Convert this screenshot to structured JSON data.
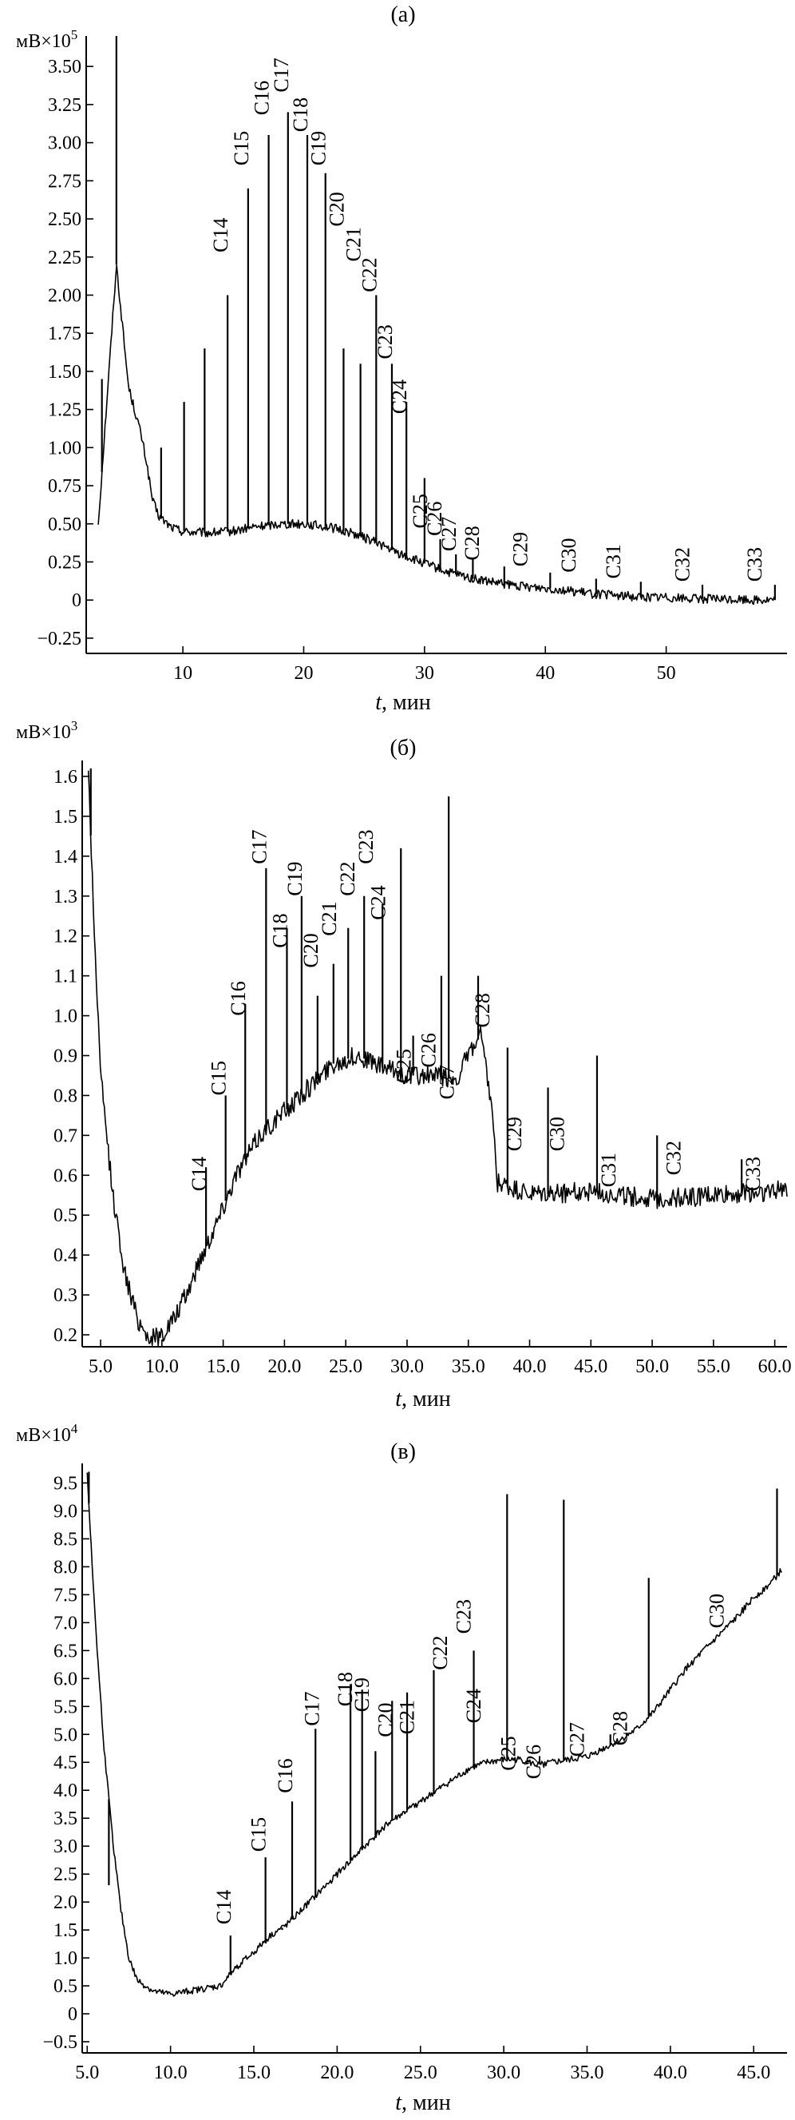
{
  "figure": {
    "title": "",
    "panels_count": 3
  },
  "colors": {
    "line": "#000000",
    "axis": "#000000",
    "background": "#ffffff"
  },
  "chart_data": [
    {
      "type": "line",
      "panel_label": "(a)",
      "unit_label": "мВ×10",
      "unit_exp": "5",
      "xlabel_var": "t",
      "xlabel_unit": ", мин",
      "xlim": [
        2,
        60
      ],
      "ylim": [
        -0.35,
        3.7
      ],
      "xticks": [
        10,
        20,
        30,
        40,
        50
      ],
      "xtick_labels": [
        "10",
        "20",
        "30",
        "40",
        "50"
      ],
      "yticks": [
        -0.25,
        0,
        0.25,
        0.5,
        0.75,
        1.0,
        1.25,
        1.5,
        1.75,
        2.0,
        2.25,
        2.5,
        2.75,
        3.0,
        3.25,
        3.5
      ],
      "ytick_labels": [
        "−0.25",
        "0",
        "0.25",
        "0.50",
        "0.75",
        "1.00",
        "1.25",
        "1.50",
        "1.75",
        "2.00",
        "2.25",
        "2.50",
        "2.75",
        "3.00",
        "3.25",
        "3.50"
      ],
      "baseline": [
        [
          3,
          0.5
        ],
        [
          4.5,
          2.2
        ],
        [
          5,
          1.8
        ],
        [
          5.5,
          1.4
        ],
        [
          6,
          1.25
        ],
        [
          6.5,
          1.1
        ],
        [
          7,
          0.9
        ],
        [
          7.5,
          0.65
        ],
        [
          8,
          0.55
        ],
        [
          9,
          0.48
        ],
        [
          10,
          0.45
        ],
        [
          12,
          0.44
        ],
        [
          14,
          0.45
        ],
        [
          16,
          0.48
        ],
        [
          18,
          0.5
        ],
        [
          20,
          0.5
        ],
        [
          22,
          0.48
        ],
        [
          24,
          0.44
        ],
        [
          26,
          0.38
        ],
        [
          28,
          0.3
        ],
        [
          30,
          0.24
        ],
        [
          32,
          0.18
        ],
        [
          34,
          0.14
        ],
        [
          36,
          0.11
        ],
        [
          38,
          0.09
        ],
        [
          40,
          0.08
        ],
        [
          42,
          0.06
        ],
        [
          44,
          0.04
        ],
        [
          46,
          0.03
        ],
        [
          48,
          0.02
        ],
        [
          50,
          0.02
        ],
        [
          52,
          0.01
        ],
        [
          55,
          0.005
        ],
        [
          59,
          0.0
        ]
      ],
      "noise_amp": 0.06,
      "peaks": [
        {
          "x": 3.3,
          "y": 1.45
        },
        {
          "x": 4.5,
          "y": 3.7
        },
        {
          "x": 8.2,
          "y": 1.0
        },
        {
          "x": 10.1,
          "y": 1.3
        },
        {
          "x": 11.8,
          "y": 1.65
        },
        {
          "x": 13.7,
          "y": 2.0
        },
        {
          "x": 15.4,
          "y": 2.7
        },
        {
          "x": 17.1,
          "y": 3.05
        },
        {
          "x": 18.7,
          "y": 3.2
        },
        {
          "x": 20.3,
          "y": 3.05
        },
        {
          "x": 21.8,
          "y": 2.8
        },
        {
          "x": 23.3,
          "y": 1.65
        },
        {
          "x": 24.7,
          "y": 1.55
        },
        {
          "x": 26.0,
          "y": 2.0
        },
        {
          "x": 27.3,
          "y": 1.55
        },
        {
          "x": 28.5,
          "y": 1.3
        },
        {
          "x": 30.0,
          "y": 0.8
        },
        {
          "x": 31.3,
          "y": 0.4
        },
        {
          "x": 32.6,
          "y": 0.3
        },
        {
          "x": 34.0,
          "y": 0.27
        },
        {
          "x": 36.6,
          "y": 0.22
        },
        {
          "x": 40.4,
          "y": 0.18
        },
        {
          "x": 44.2,
          "y": 0.14
        },
        {
          "x": 47.9,
          "y": 0.12
        },
        {
          "x": 53.0,
          "y": 0.1
        },
        {
          "x": 59.0,
          "y": 0.1
        }
      ],
      "labels": [
        {
          "text": "C14",
          "x": 13.7,
          "y": 2.28
        },
        {
          "text": "C15",
          "x": 15.4,
          "y": 2.85
        },
        {
          "text": "C16",
          "x": 17.1,
          "y": 3.18
        },
        {
          "text": "C17",
          "x": 18.7,
          "y": 3.33
        },
        {
          "text": "C18",
          "x": 20.3,
          "y": 3.07
        },
        {
          "text": "C19",
          "x": 21.8,
          "y": 2.85
        },
        {
          "text": "C20",
          "x": 23.3,
          "y": 2.45
        },
        {
          "text": "C21",
          "x": 24.7,
          "y": 2.22
        },
        {
          "text": "C22",
          "x": 26.0,
          "y": 2.02
        },
        {
          "text": "C23",
          "x": 27.3,
          "y": 1.58
        },
        {
          "text": "C24",
          "x": 28.5,
          "y": 1.22
        },
        {
          "text": "C25",
          "x": 30.2,
          "y": 0.47
        },
        {
          "text": "C26",
          "x": 31.4,
          "y": 0.42
        },
        {
          "text": "C27",
          "x": 32.6,
          "y": 0.32
        },
        {
          "text": "C28",
          "x": 34.5,
          "y": 0.26
        },
        {
          "text": "C29",
          "x": 38.5,
          "y": 0.22
        },
        {
          "text": "C30",
          "x": 42.5,
          "y": 0.18
        },
        {
          "text": "C31",
          "x": 46.2,
          "y": 0.14
        },
        {
          "text": "C32",
          "x": 51.9,
          "y": 0.12
        },
        {
          "text": "C33",
          "x": 57.9,
          "y": 0.12
        }
      ]
    },
    {
      "type": "line",
      "panel_label": "(б)",
      "unit_label": "мВ×10",
      "unit_exp": "3",
      "xlabel_var": "t",
      "xlabel_unit": ", мин",
      "xlim": [
        3.5,
        61
      ],
      "ylim": [
        0.17,
        1.64
      ],
      "xticks": [
        5,
        10,
        15,
        20,
        25,
        30,
        35,
        40,
        45,
        50,
        55,
        60
      ],
      "xtick_labels": [
        "5.0",
        "10.0",
        "15.0",
        "20.0",
        "25.0",
        "30.0",
        "35.0",
        "40.0",
        "45.0",
        "50.0",
        "55.0",
        "60.0"
      ],
      "yticks": [
        0.2,
        0.3,
        0.4,
        0.5,
        0.6,
        0.7,
        0.8,
        0.9,
        1.0,
        1.1,
        1.2,
        1.3,
        1.4,
        1.5,
        1.6
      ],
      "ytick_labels": [
        "0.2",
        "0.3",
        "0.4",
        "0.5",
        "0.6",
        "0.7",
        "0.8",
        "0.9",
        "1.0",
        "1.1",
        "1.2",
        "1.3",
        "1.4",
        "1.5",
        "1.6"
      ],
      "baseline": [
        [
          4,
          1.62
        ],
        [
          4.5,
          1.2
        ],
        [
          5,
          0.85
        ],
        [
          6,
          0.55
        ],
        [
          7,
          0.35
        ],
        [
          8,
          0.24
        ],
        [
          9,
          0.19
        ],
        [
          10,
          0.2
        ],
        [
          11,
          0.24
        ],
        [
          12,
          0.3
        ],
        [
          13,
          0.38
        ],
        [
          14,
          0.45
        ],
        [
          15,
          0.52
        ],
        [
          16,
          0.6
        ],
        [
          17,
          0.65
        ],
        [
          18,
          0.7
        ],
        [
          20,
          0.76
        ],
        [
          22,
          0.82
        ],
        [
          24,
          0.88
        ],
        [
          26,
          0.9
        ],
        [
          28,
          0.87
        ],
        [
          30,
          0.85
        ],
        [
          32,
          0.85
        ],
        [
          34,
          0.84
        ],
        [
          35,
          0.9
        ],
        [
          36,
          0.95
        ],
        [
          37,
          0.75
        ],
        [
          37.3,
          0.58
        ],
        [
          40,
          0.55
        ],
        [
          45,
          0.56
        ],
        [
          50,
          0.54
        ],
        [
          55,
          0.55
        ],
        [
          60,
          0.56
        ],
        [
          61,
          0.57
        ]
      ],
      "noise_amp": 0.05,
      "peaks": [
        {
          "x": 4.2,
          "y": 1.62
        },
        {
          "x": 13.6,
          "y": 0.62
        },
        {
          "x": 15.2,
          "y": 0.8
        },
        {
          "x": 16.8,
          "y": 1.03
        },
        {
          "x": 18.5,
          "y": 1.37
        },
        {
          "x": 20.2,
          "y": 1.22
        },
        {
          "x": 21.4,
          "y": 1.3
        },
        {
          "x": 22.7,
          "y": 1.05
        },
        {
          "x": 24.0,
          "y": 1.13
        },
        {
          "x": 25.2,
          "y": 1.22
        },
        {
          "x": 26.5,
          "y": 1.3
        },
        {
          "x": 28.0,
          "y": 1.28
        },
        {
          "x": 29.5,
          "y": 1.42
        },
        {
          "x": 30.5,
          "y": 0.95
        },
        {
          "x": 32.8,
          "y": 1.1
        },
        {
          "x": 33.4,
          "y": 1.55
        },
        {
          "x": 35.8,
          "y": 1.1
        },
        {
          "x": 38.2,
          "y": 0.92
        },
        {
          "x": 41.5,
          "y": 0.82
        },
        {
          "x": 45.5,
          "y": 0.9
        },
        {
          "x": 50.4,
          "y": 0.7
        },
        {
          "x": 57.3,
          "y": 0.64
        }
      ],
      "labels": [
        {
          "text": "C14",
          "x": 13.6,
          "y": 0.56
        },
        {
          "text": "C15",
          "x": 15.2,
          "y": 0.8
        },
        {
          "text": "C16",
          "x": 16.8,
          "y": 1.0
        },
        {
          "text": "C17",
          "x": 18.5,
          "y": 1.38
        },
        {
          "text": "C18",
          "x": 20.2,
          "y": 1.17
        },
        {
          "text": "C19",
          "x": 21.4,
          "y": 1.3
        },
        {
          "text": "C20",
          "x": 22.7,
          "y": 1.12
        },
        {
          "text": "C21",
          "x": 24.2,
          "y": 1.2
        },
        {
          "text": "C22",
          "x": 25.7,
          "y": 1.3
        },
        {
          "text": "C23",
          "x": 27.2,
          "y": 1.38
        },
        {
          "text": "C24",
          "x": 28.2,
          "y": 1.24
        },
        {
          "text": "C25",
          "x": 30.3,
          "y": 0.83
        },
        {
          "text": "C26",
          "x": 32.3,
          "y": 0.87
        },
        {
          "text": "C27",
          "x": 33.8,
          "y": 0.79
        },
        {
          "text": "C28",
          "x": 36.7,
          "y": 0.97
        },
        {
          "text": "C29",
          "x": 39.3,
          "y": 0.66
        },
        {
          "text": "C30",
          "x": 42.8,
          "y": 0.66
        },
        {
          "text": "C31",
          "x": 47.0,
          "y": 0.57
        },
        {
          "text": "C32",
          "x": 52.3,
          "y": 0.6
        },
        {
          "text": "C33",
          "x": 58.8,
          "y": 0.56
        }
      ]
    },
    {
      "type": "line",
      "panel_label": "(в)",
      "unit_label": "мВ×10",
      "unit_exp": "4",
      "xlabel_var": "t",
      "xlabel_unit": ", мин",
      "xlim": [
        4.7,
        47
      ],
      "ylim": [
        -0.7,
        9.85
      ],
      "xticks": [
        5,
        10,
        15,
        20,
        25,
        30,
        35,
        40,
        45
      ],
      "xtick_labels": [
        "5.0",
        "10.0",
        "15.0",
        "20.0",
        "25.0",
        "30.0",
        "35.0",
        "40.0",
        "45.0"
      ],
      "yticks": [
        -0.5,
        0,
        0.5,
        1.0,
        1.5,
        2.0,
        2.5,
        3.0,
        3.5,
        4.0,
        4.5,
        5.0,
        5.5,
        6.0,
        6.5,
        7.0,
        7.5,
        8.0,
        8.5,
        9.0,
        9.5
      ],
      "ytick_labels": [
        "−0.5",
        "0",
        "0.5",
        "1.0",
        "1.5",
        "2.0",
        "2.5",
        "3.0",
        "3.5",
        "4.0",
        "4.5",
        "5.0",
        "5.5",
        "6.0",
        "6.5",
        "7.0",
        "7.5",
        "8.0",
        "8.5",
        "9.0",
        "9.5"
      ],
      "baseline": [
        [
          5,
          9.7
        ],
        [
          5.3,
          8.0
        ],
        [
          5.6,
          6.5
        ],
        [
          6,
          4.8
        ],
        [
          6.5,
          3.2
        ],
        [
          7,
          1.9
        ],
        [
          7.5,
          1.0
        ],
        [
          8,
          0.6
        ],
        [
          9,
          0.4
        ],
        [
          10,
          0.35
        ],
        [
          11,
          0.4
        ],
        [
          12,
          0.45
        ],
        [
          13,
          0.5
        ],
        [
          14,
          0.85
        ],
        [
          15,
          1.1
        ],
        [
          16,
          1.4
        ],
        [
          17,
          1.6
        ],
        [
          18,
          1.9
        ],
        [
          19,
          2.2
        ],
        [
          20,
          2.5
        ],
        [
          21,
          2.8
        ],
        [
          22,
          3.1
        ],
        [
          23,
          3.4
        ],
        [
          24,
          3.6
        ],
        [
          25,
          3.8
        ],
        [
          26,
          4.0
        ],
        [
          27,
          4.2
        ],
        [
          28,
          4.4
        ],
        [
          29,
          4.5
        ],
        [
          30,
          4.55
        ],
        [
          31,
          4.55
        ],
        [
          32,
          4.45
        ],
        [
          33,
          4.5
        ],
        [
          34,
          4.55
        ],
        [
          35,
          4.6
        ],
        [
          36,
          4.75
        ],
        [
          37,
          4.9
        ],
        [
          38,
          5.1
        ],
        [
          39,
          5.4
        ],
        [
          40,
          5.8
        ],
        [
          41,
          6.2
        ],
        [
          42,
          6.5
        ],
        [
          43,
          6.8
        ],
        [
          44,
          7.1
        ],
        [
          45,
          7.45
        ],
        [
          46,
          7.7
        ],
        [
          46.7,
          7.95
        ]
      ],
      "noise_amp": 0.12,
      "peaks": [
        {
          "x": 5.1,
          "y": 9.7
        },
        {
          "x": 6.3,
          "y": 2.3
        },
        {
          "x": 13.6,
          "y": 1.4
        },
        {
          "x": 15.7,
          "y": 2.8
        },
        {
          "x": 16.7,
          "y": 1.5
        },
        {
          "x": 17.3,
          "y": 3.8
        },
        {
          "x": 18.7,
          "y": 5.1
        },
        {
          "x": 20.8,
          "y": 5.9
        },
        {
          "x": 21.5,
          "y": 5.8
        },
        {
          "x": 22.3,
          "y": 4.7
        },
        {
          "x": 23.3,
          "y": 5.6
        },
        {
          "x": 24.2,
          "y": 5.75
        },
        {
          "x": 25.8,
          "y": 6.15
        },
        {
          "x": 28.2,
          "y": 6.5
        },
        {
          "x": 30.2,
          "y": 9.3
        },
        {
          "x": 33.6,
          "y": 9.2
        },
        {
          "x": 36.4,
          "y": 5.0
        },
        {
          "x": 38.7,
          "y": 7.8
        },
        {
          "x": 46.4,
          "y": 9.4
        }
      ],
      "labels": [
        {
          "text": "C14",
          "x": 13.6,
          "y": 1.6
        },
        {
          "text": "C15",
          "x": 15.7,
          "y": 2.9
        },
        {
          "text": "C16",
          "x": 17.3,
          "y": 3.95
        },
        {
          "text": "C17",
          "x": 18.9,
          "y": 5.15
        },
        {
          "text": "C18",
          "x": 20.9,
          "y": 5.5
        },
        {
          "text": "C19",
          "x": 21.9,
          "y": 5.4
        },
        {
          "text": "C20",
          "x": 23.3,
          "y": 4.95
        },
        {
          "text": "C21",
          "x": 24.6,
          "y": 5.0
        },
        {
          "text": "C22",
          "x": 26.6,
          "y": 6.15
        },
        {
          "text": "C23",
          "x": 28.0,
          "y": 6.8
        },
        {
          "text": "C24",
          "x": 28.6,
          "y": 5.2
        },
        {
          "text": "C25",
          "x": 30.7,
          "y": 4.35
        },
        {
          "text": "C26",
          "x": 32.2,
          "y": 4.2
        },
        {
          "text": "C27",
          "x": 34.8,
          "y": 4.6
        },
        {
          "text": "C28",
          "x": 37.4,
          "y": 4.8
        },
        {
          "text": "C30",
          "x": 43.2,
          "y": 6.9
        }
      ]
    }
  ]
}
